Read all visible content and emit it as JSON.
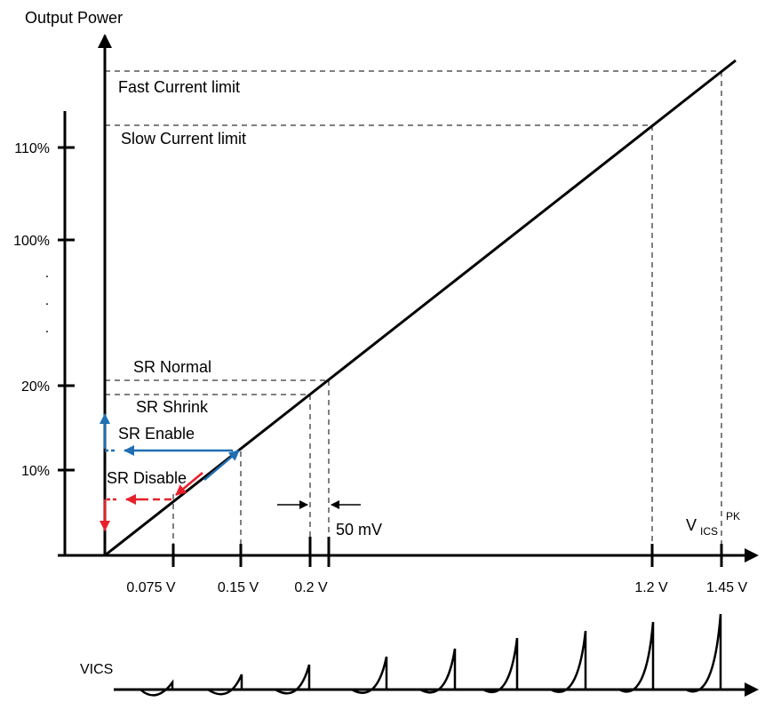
{
  "diagram": {
    "y_axis_title": "Output Power",
    "x_axis_title": {
      "main": "V",
      "subscript": "ICS",
      "superscript": "PK"
    },
    "bottom_signal_label": "VICS",
    "y_ticks": [
      "110%",
      "100%",
      "20%",
      "10%"
    ],
    "y_ellipsis": [
      "."
    ],
    "x_ticks": [
      "0.075 V",
      "0.15 V",
      "0.2 V",
      "1.2 V",
      "1.45 V"
    ],
    "threshold_labels": {
      "fast_current_limit": "Fast Current limit",
      "slow_current_limit": "Slow Current limit",
      "sr_normal": "SR Normal",
      "sr_shrink": "SR Shrink",
      "sr_enable": "SR Enable",
      "sr_disable": "SR Disable"
    },
    "hysteresis_label": "50 mV",
    "colors": {
      "axis": "#000000",
      "enable_arrow": "#1f6fb3",
      "disable_arrow": "#e8202a",
      "guide_dash": "#000000"
    }
  }
}
